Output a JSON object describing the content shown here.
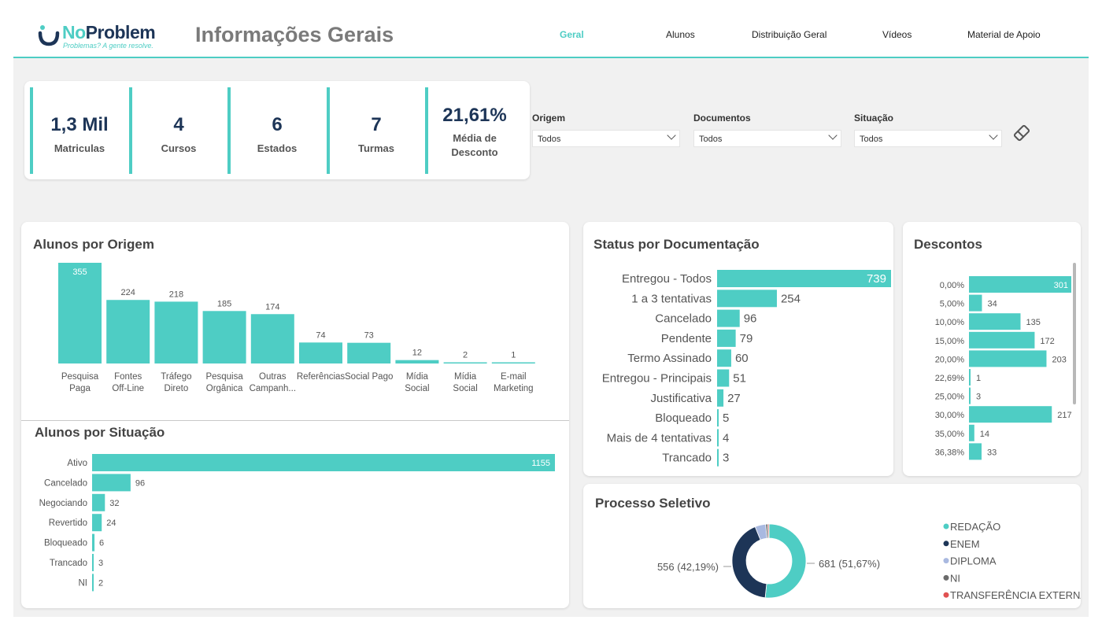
{
  "logo": {
    "name_no": "No",
    "name_problem": "Problem",
    "tagline": "Problemas? A gente resolve."
  },
  "page_title": "Informações Gerais",
  "nav": [
    {
      "label": "Geral",
      "active": true
    },
    {
      "label": "Alunos",
      "active": false
    },
    {
      "label": "Distribuição Geral",
      "active": false
    },
    {
      "label": "Vídeos",
      "active": false
    },
    {
      "label": "Material de Apoio",
      "active": false
    }
  ],
  "kpis": [
    {
      "value": "1,3 Mil",
      "label": "Matriculas"
    },
    {
      "value": "4",
      "label": "Cursos"
    },
    {
      "value": "6",
      "label": "Estados"
    },
    {
      "value": "7",
      "label": "Turmas"
    },
    {
      "value": "21,61%",
      "label": "Média de Desconto"
    }
  ],
  "slicers": [
    {
      "label": "Origem",
      "value": "Todos"
    },
    {
      "label": "Documentos",
      "value": "Todos"
    },
    {
      "label": "Situação",
      "value": "Todos"
    }
  ],
  "colors": {
    "accent": "#4ecdc4",
    "navy": "#1d3557",
    "diploma": "#a9b9e0",
    "ni": "#6b6b6b",
    "transfer": "#e05252"
  },
  "chart_data": [
    {
      "id": "origem",
      "type": "bar",
      "title": "Alunos por Origem",
      "categories": [
        [
          "Pesquisa",
          "Paga"
        ],
        [
          "Fontes",
          "Off-Line"
        ],
        [
          "Tráfego",
          "Direto"
        ],
        [
          "Pesquisa",
          "Orgânica"
        ],
        [
          "Outras",
          "Campanh..."
        ],
        [
          "Referências"
        ],
        [
          "Social Pago"
        ],
        [
          "Mídia",
          "Social"
        ],
        [
          "Mídia",
          "Social"
        ],
        [
          "E-mail",
          "Marketing"
        ]
      ],
      "values": [
        355,
        224,
        218,
        185,
        174,
        74,
        73,
        12,
        2,
        1
      ]
    },
    {
      "id": "situacao",
      "type": "bar",
      "orientation": "horizontal",
      "title": "Alunos por Situação",
      "categories": [
        "Ativo",
        "Cancelado",
        "Negociando",
        "Revertido",
        "Bloqueado",
        "Trancado",
        "NI"
      ],
      "values": [
        1155,
        96,
        32,
        24,
        6,
        3,
        2
      ]
    },
    {
      "id": "documentacao",
      "type": "bar",
      "orientation": "horizontal",
      "title": "Status por Documentação",
      "categories": [
        "Entregou - Todos",
        "1 a 3 tentativas",
        "Cancelado",
        "Pendente",
        "Termo Assinado",
        "Entregou - Principais",
        "Justificativa",
        "Bloqueado",
        "Mais de 4 tentativas",
        "Trancado"
      ],
      "values": [
        739,
        254,
        96,
        79,
        60,
        51,
        27,
        5,
        4,
        3
      ]
    },
    {
      "id": "descontos",
      "type": "bar",
      "orientation": "horizontal",
      "title": "Descontos",
      "categories": [
        "0,00%",
        "5,00%",
        "10,00%",
        "15,00%",
        "20,00%",
        "22,69%",
        "25,00%",
        "30,00%",
        "35,00%",
        "36,38%"
      ],
      "values": [
        301,
        34,
        135,
        172,
        203,
        1,
        3,
        217,
        14,
        33
      ]
    },
    {
      "id": "processo",
      "type": "pie",
      "title": "Processo Seletivo",
      "slices": [
        {
          "name": "REDAÇÃO",
          "value": 681,
          "label": "681 (51,67%)",
          "color": "#4ecdc4"
        },
        {
          "name": "ENEM",
          "value": 556,
          "label": "556 (42,19%)",
          "color": "#1d3557"
        },
        {
          "name": "DIPLOMA",
          "value": 62,
          "label": "",
          "color": "#a9b9e0"
        },
        {
          "name": "NI",
          "value": 12,
          "label": "",
          "color": "#6b6b6b"
        },
        {
          "name": "TRANSFERÊNCIA EXTERNA",
          "value": 7,
          "label": "",
          "color": "#e05252"
        }
      ]
    }
  ]
}
